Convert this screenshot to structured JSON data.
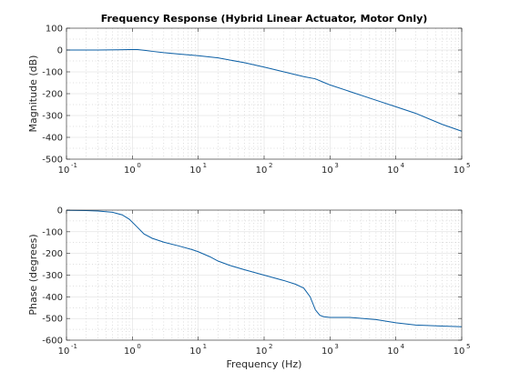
{
  "chart_data": [
    {
      "type": "line",
      "title": "Frequency Response (Hybrid Linear Actuator, Motor Only)",
      "xlabel": "",
      "ylabel": "Magnitude (dB)",
      "xscale": "log",
      "xlim": [
        0.1,
        100000
      ],
      "ylim": [
        -500,
        100
      ],
      "yticks": [
        100,
        0,
        -100,
        -200,
        -300,
        -400,
        -500
      ],
      "xtick_exponents": [
        "-1",
        "0",
        "1",
        "2",
        "3",
        "4",
        "5"
      ],
      "xtick_base": "10",
      "grid": true,
      "series": [
        {
          "color": "#0b5fa5",
          "x": [
            0.1,
            0.3,
            0.6,
            0.9,
            1.2,
            1.6,
            2,
            3,
            5,
            10,
            20,
            50,
            100,
            200,
            400,
            600,
            800,
            1000,
            2000,
            5000,
            10000,
            20000,
            50000,
            100000
          ],
          "y": [
            0,
            0,
            1,
            2,
            2,
            -2,
            -6,
            -12,
            -18,
            -26,
            -36,
            -58,
            -78,
            -100,
            -122,
            -132,
            -148,
            -160,
            -190,
            -230,
            -260,
            -290,
            -340,
            -372
          ]
        }
      ]
    },
    {
      "type": "line",
      "title": "",
      "xlabel": "Frequency (Hz)",
      "ylabel": "Phase (degrees)",
      "xscale": "log",
      "xlim": [
        0.1,
        100000
      ],
      "ylim": [
        -600,
        0
      ],
      "yticks": [
        0,
        -100,
        -200,
        -300,
        -400,
        -500,
        -600
      ],
      "xtick_exponents": [
        "-1",
        "0",
        "1",
        "2",
        "3",
        "4",
        "5"
      ],
      "xtick_base": "10",
      "grid": true,
      "series": [
        {
          "color": "#0b5fa5",
          "x": [
            0.1,
            0.2,
            0.3,
            0.5,
            0.7,
            0.9,
            1.2,
            1.5,
            2,
            3,
            5,
            8,
            10,
            15,
            20,
            30,
            50,
            100,
            200,
            300,
            400,
            500,
            600,
            700,
            800,
            1000,
            2000,
            5000,
            10000,
            20000,
            50000,
            100000
          ],
          "y": [
            -1,
            -2,
            -4,
            -10,
            -22,
            -42,
            -80,
            -110,
            -130,
            -148,
            -165,
            -182,
            -192,
            -215,
            -235,
            -255,
            -275,
            -300,
            -325,
            -342,
            -360,
            -400,
            -460,
            -485,
            -492,
            -495,
            -495,
            -505,
            -520,
            -530,
            -535,
            -538
          ]
        }
      ]
    }
  ]
}
